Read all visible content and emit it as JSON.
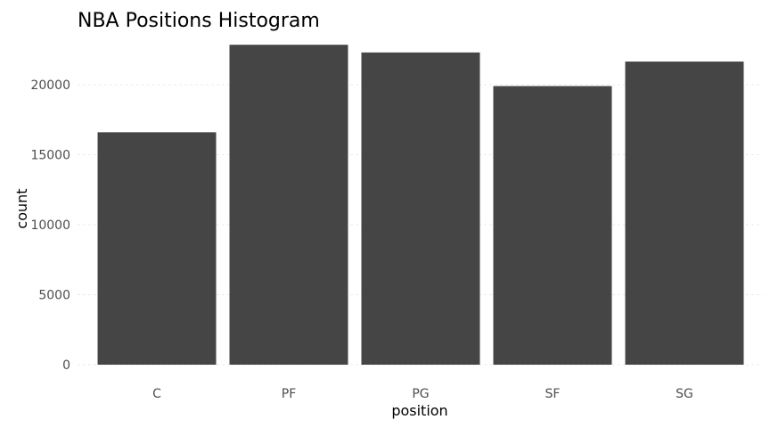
{
  "chart_data": {
    "type": "bar",
    "title": "NBA Positions Histogram",
    "xlabel": "position",
    "ylabel": "count",
    "categories": [
      "C",
      "PF",
      "PG",
      "SF",
      "SG"
    ],
    "values": [
      16600,
      22850,
      22300,
      19900,
      21650
    ],
    "yticks": [
      0,
      5000,
      10000,
      15000,
      20000
    ],
    "ylim": [
      0,
      23500
    ],
    "grid": true,
    "legend": "none",
    "colors": {
      "bar": "#454545",
      "grid": "#ebebeb",
      "tick_text": "#4d4d4d"
    }
  }
}
